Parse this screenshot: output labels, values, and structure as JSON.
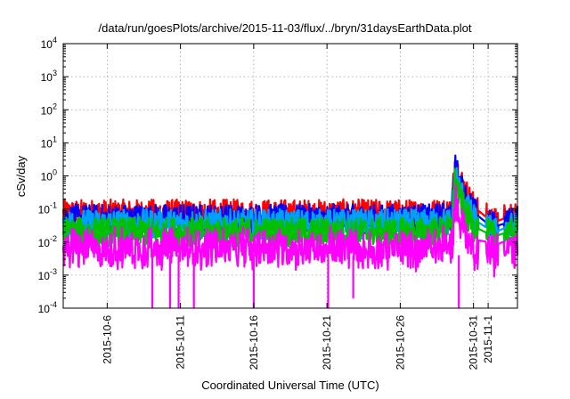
{
  "chart_data": {
    "type": "line",
    "title": "/data/run/goesPlots/archive/2015-11-03/flux/../bryn/31daysEarthData.plot",
    "xlabel": "Coordinated Universal Time (UTC)",
    "ylabel": "cSv/day",
    "yscale": "log",
    "ylim": [
      0.0001,
      10000
    ],
    "xlim": [
      "2015-10-03T00:00",
      "2015-11-03T00:00"
    ],
    "grid": true,
    "yticks": [
      {
        "base": "10",
        "exp": "-4",
        "value": 0.0001
      },
      {
        "base": "10",
        "exp": "-3",
        "value": 0.001
      },
      {
        "base": "10",
        "exp": "-2",
        "value": 0.01
      },
      {
        "base": "10",
        "exp": "-1",
        "value": 0.1
      },
      {
        "base": "10",
        "exp": "0",
        "value": 1
      },
      {
        "base": "10",
        "exp": "1",
        "value": 10
      },
      {
        "base": "10",
        "exp": "2",
        "value": 100
      },
      {
        "base": "10",
        "exp": "3",
        "value": 1000
      },
      {
        "base": "10",
        "exp": "4",
        "value": 10000
      }
    ],
    "xticks": [
      {
        "label": "2015-10-6",
        "value": "2015-10-06T00:00"
      },
      {
        "label": "2015-10-11",
        "value": "2015-10-11T00:00"
      },
      {
        "label": "2015-10-16",
        "value": "2015-10-16T00:00"
      },
      {
        "label": "2015-10-21",
        "value": "2015-10-21T00:00"
      },
      {
        "label": "2015-10-26",
        "value": "2015-10-26T00:00"
      },
      {
        "label": "2015-10-31",
        "value": "2015-10-31T00:00"
      },
      {
        "label": "2015-11-1",
        "value": "2015-11-01T00:00"
      }
    ],
    "series": [
      {
        "color": "#ff0000",
        "x": [
          "2015-10-03T00:00",
          "2015-10-08T00:00",
          "2015-10-13T00:00",
          "2015-10-18T00:00",
          "2015-10-23T00:00",
          "2015-10-28T00:00",
          "2015-10-29T12:00",
          "2015-10-29T18:00",
          "2015-10-30T00:00",
          "2015-10-30T12:00",
          "2015-10-31T00:00",
          "2015-11-01T00:00",
          "2015-11-01T12:00",
          "2015-11-02T00:00",
          "2015-11-03T00:00"
        ],
        "y": [
          0.07,
          0.07,
          0.07,
          0.07,
          0.07,
          0.07,
          0.08,
          3.5,
          1.0,
          0.3,
          0.12,
          0.05,
          0.04,
          0.05,
          0.06
        ]
      },
      {
        "color": "#0000ff",
        "x": [
          "2015-10-03T00:00",
          "2015-10-08T00:00",
          "2015-10-13T00:00",
          "2015-10-18T00:00",
          "2015-10-23T00:00",
          "2015-10-28T00:00",
          "2015-10-29T12:00",
          "2015-10-29T18:00",
          "2015-10-30T00:00",
          "2015-10-30T12:00",
          "2015-10-31T00:00",
          "2015-11-01T00:00",
          "2015-11-01T12:00",
          "2015-11-02T00:00",
          "2015-11-03T00:00"
        ],
        "y": [
          0.05,
          0.05,
          0.05,
          0.05,
          0.05,
          0.05,
          0.06,
          2.2,
          0.7,
          0.2,
          0.08,
          0.035,
          0.03,
          0.035,
          0.045
        ]
      },
      {
        "color": "#00a0ff",
        "x": [
          "2015-10-03T00:00",
          "2015-10-08T00:00",
          "2015-10-13T00:00",
          "2015-10-18T00:00",
          "2015-10-23T00:00",
          "2015-10-28T00:00",
          "2015-10-29T12:00",
          "2015-10-29T18:00",
          "2015-10-30T00:00",
          "2015-10-30T12:00",
          "2015-10-31T00:00",
          "2015-11-01T00:00",
          "2015-11-01T12:00",
          "2015-11-02T00:00",
          "2015-11-03T00:00"
        ],
        "y": [
          0.035,
          0.035,
          0.035,
          0.035,
          0.035,
          0.035,
          0.04,
          1.5,
          0.45,
          0.13,
          0.05,
          0.025,
          0.02,
          0.025,
          0.03
        ]
      },
      {
        "color": "#00c000",
        "x": [
          "2015-10-03T00:00",
          "2015-10-08T00:00",
          "2015-10-13T00:00",
          "2015-10-18T00:00",
          "2015-10-23T00:00",
          "2015-10-28T00:00",
          "2015-10-29T12:00",
          "2015-10-29T18:00",
          "2015-10-30T00:00",
          "2015-10-30T12:00",
          "2015-10-31T00:00",
          "2015-11-01T00:00",
          "2015-11-01T12:00",
          "2015-11-02T00:00",
          "2015-11-03T00:00"
        ],
        "y": [
          0.02,
          0.02,
          0.02,
          0.02,
          0.02,
          0.02,
          0.025,
          0.9,
          0.25,
          0.07,
          0.03,
          0.018,
          0.015,
          0.018,
          0.02
        ]
      },
      {
        "color": "#ff00ff",
        "x": [
          "2015-10-03T00:00",
          "2015-10-08T00:00",
          "2015-10-13T00:00",
          "2015-10-18T00:00",
          "2015-10-23T00:00",
          "2015-10-28T00:00",
          "2015-10-29T12:00",
          "2015-10-29T18:00",
          "2015-10-30T00:00",
          "2015-10-30T12:00",
          "2015-10-31T00:00",
          "2015-11-01T00:00",
          "2015-11-01T12:00",
          "2015-11-02T00:00",
          "2015-11-03T00:00"
        ],
        "y": [
          0.012,
          0.012,
          0.012,
          0.012,
          0.012,
          0.012,
          0.015,
          0.35,
          0.1,
          0.03,
          0.012,
          0.01,
          0.008,
          0.01,
          0.012
        ]
      }
    ],
    "dips": [
      {
        "x": "2015-10-09T02:00",
        "y": 0.0001
      },
      {
        "x": "2015-10-10T07:00",
        "y": 0.0001
      },
      {
        "x": "2015-10-10T21:00",
        "y": 0.0001
      },
      {
        "x": "2015-10-11T22:00",
        "y": 0.0001
      },
      {
        "x": "2015-10-16T00:00",
        "y": 0.0001
      },
      {
        "x": "2015-10-21T02:00",
        "y": 0.0001
      },
      {
        "x": "2015-10-22T19:00",
        "y": 0.0002
      },
      {
        "x": "2015-10-30T00:00",
        "y": 0.0001
      }
    ]
  }
}
